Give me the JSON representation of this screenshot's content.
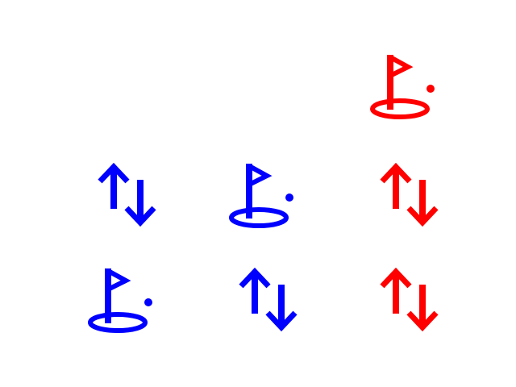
{
  "board": {
    "rows": [
      [
        {
          "icon": "empty",
          "color": ""
        },
        {
          "icon": "empty",
          "color": ""
        },
        {
          "icon": "golf-flag-icon",
          "color": "#ff0000"
        }
      ],
      [
        {
          "icon": "swap-vertical-arrows-icon",
          "color": "#0000ff"
        },
        {
          "icon": "golf-flag-icon",
          "color": "#0000ff"
        },
        {
          "icon": "swap-vertical-arrows-icon",
          "color": "#ff0000"
        }
      ],
      [
        {
          "icon": "golf-flag-icon",
          "color": "#0000ff"
        },
        {
          "icon": "swap-vertical-arrows-icon",
          "color": "#0000ff"
        },
        {
          "icon": "swap-vertical-arrows-icon",
          "color": "#ff0000"
        }
      ]
    ]
  }
}
